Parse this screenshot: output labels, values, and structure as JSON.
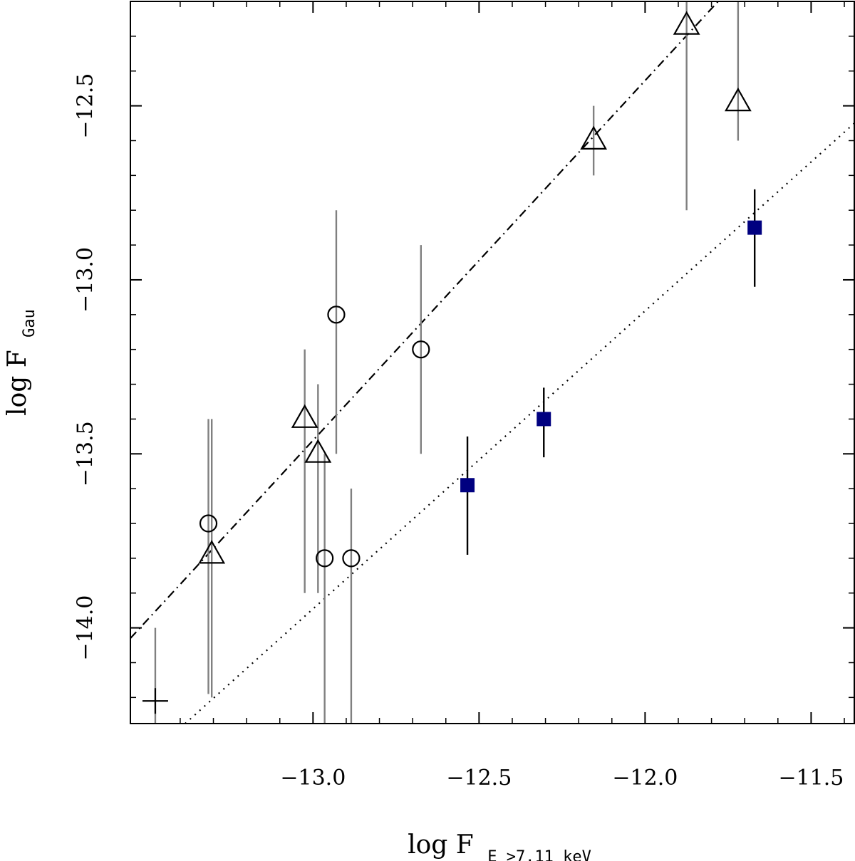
{
  "chart_data": {
    "type": "scatter",
    "xlabel": {
      "main": "log F",
      "sub": "E >7.11 keV"
    },
    "ylabel": {
      "main": "log F",
      "sub": "Gau"
    },
    "xlim": [
      -13.55,
      -11.37
    ],
    "ylim": [
      -14.275,
      -12.2
    ],
    "xticks_major": [
      -13.0,
      -12.5,
      -12.0,
      -11.5
    ],
    "xticks_major_labels": [
      "−13.0",
      "−12.5",
      "−12.0",
      "−11.5"
    ],
    "yticks_major": [
      -14.0,
      -13.5,
      -13.0,
      -12.5
    ],
    "yticks_major_labels": [
      "−14.0",
      "−13.5",
      "−13.0",
      "−12.5"
    ],
    "grid": false,
    "series": [
      {
        "marker": "triangle",
        "color": "#000000",
        "errorbar_color": "#808080",
        "points": [
          {
            "x": -13.305,
            "y": -13.79,
            "ylo": -14.2,
            "yhi": -13.4
          },
          {
            "x": -13.025,
            "y": -13.4,
            "ylo": -13.9,
            "yhi": -13.2
          },
          {
            "x": -12.985,
            "y": -13.5,
            "ylo": -13.9,
            "yhi": -13.3
          },
          {
            "x": -12.155,
            "y": -12.6,
            "ylo": -12.7,
            "yhi": -12.5
          },
          {
            "x": -11.875,
            "y": -12.27,
            "ylo": -12.8,
            "yhi": -12.2
          },
          {
            "x": -11.72,
            "y": -12.49,
            "ylo": -12.6,
            "yhi": -12.2
          }
        ]
      },
      {
        "marker": "circle",
        "color": "#000000",
        "errorbar_color": "#808080",
        "points": [
          {
            "x": -13.315,
            "y": -13.7,
            "ylo": -14.19,
            "yhi": -13.4
          },
          {
            "x": -12.93,
            "y": -13.1,
            "ylo": -13.5,
            "yhi": -12.8
          },
          {
            "x": -12.965,
            "y": -13.8,
            "ylo": -14.275,
            "yhi": -13.5
          },
          {
            "x": -12.885,
            "y": -13.8,
            "ylo": -14.275,
            "yhi": -13.6
          },
          {
            "x": -12.675,
            "y": -13.2,
            "ylo": -13.5,
            "yhi": -12.9
          }
        ]
      },
      {
        "marker": "square",
        "color": "#000080",
        "errorbar_color": "#000000",
        "points": [
          {
            "x": -12.535,
            "y": -13.59,
            "ylo": -13.79,
            "yhi": -13.45
          },
          {
            "x": -12.305,
            "y": -13.4,
            "ylo": -13.51,
            "yhi": -13.31
          },
          {
            "x": -11.67,
            "y": -12.85,
            "ylo": -13.02,
            "yhi": -12.74
          }
        ]
      },
      {
        "marker": "plus",
        "color": "#000000",
        "errorbar_color": "#808080",
        "points": [
          {
            "x": -13.475,
            "y": -14.21,
            "ylo": -14.275,
            "yhi": -14.0
          }
        ]
      }
    ],
    "lines": [
      {
        "style": "dashdot",
        "x1": -13.55,
        "y1": -14.03,
        "x2": -11.78,
        "y2": -12.2
      },
      {
        "style": "dotted",
        "x1": -13.385,
        "y1": -14.275,
        "x2": -11.37,
        "y2": -12.55
      }
    ]
  }
}
